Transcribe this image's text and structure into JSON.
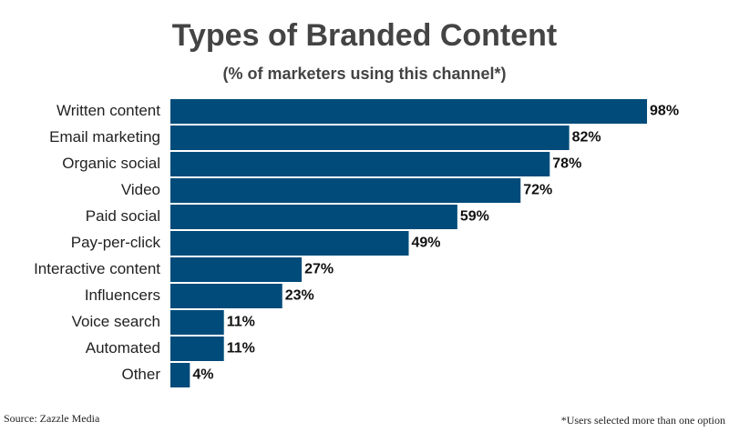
{
  "chart_data": {
    "type": "bar",
    "orientation": "horizontal",
    "title": "Types of Branded Content",
    "subtitle": "(% of marketers using this channel*)",
    "categories": [
      "Written content",
      "Email marketing",
      "Organic social",
      "Video",
      "Paid social",
      "Pay-per-click",
      "Interactive content",
      "Influencers",
      "Voice search",
      "Automated",
      "Other"
    ],
    "values": [
      98,
      82,
      78,
      72,
      59,
      49,
      27,
      23,
      11,
      11,
      4
    ],
    "value_labels": [
      "98%",
      "82%",
      "78%",
      "72%",
      "59%",
      "49%",
      "27%",
      "23%",
      "11%",
      "11%",
      "4%"
    ],
    "color": "#004b7a",
    "source": "Source: Zazzle Media",
    "note": "*Users selected more than one option"
  }
}
